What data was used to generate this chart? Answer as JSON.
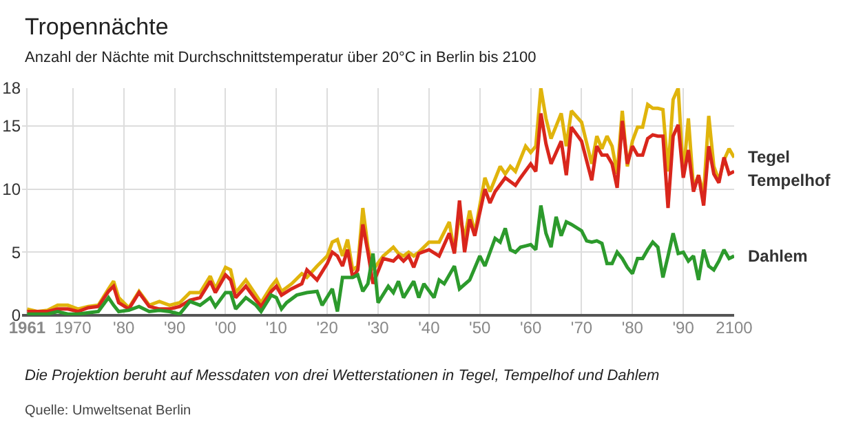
{
  "chart_data": {
    "type": "line",
    "title": "Tropennächte",
    "subtitle": "Anzahl der Nächte mit Durchschnittstemperatur über 20°C in Berlin bis 2100",
    "xlim": [
      1960,
      2100
    ],
    "ylim": [
      0,
      18
    ],
    "xticks": [
      {
        "value": 1961,
        "label": "1961"
      },
      1970,
      {
        "value": 1980,
        "label": "'80"
      },
      {
        "value": 1990,
        "label": "'90"
      },
      {
        "value": 2000,
        "label": "'00"
      },
      {
        "value": 2010,
        "label": "'10"
      },
      {
        "value": 2020,
        "label": "'20"
      },
      {
        "value": 2030,
        "label": "'30"
      },
      {
        "value": 2040,
        "label": "'40"
      },
      {
        "value": 2050,
        "label": "'50"
      },
      {
        "value": 2060,
        "label": "'60"
      },
      {
        "value": 2070,
        "label": "'70"
      },
      {
        "value": 2080,
        "label": "'80"
      },
      {
        "value": 2090,
        "label": "'90"
      },
      2100
    ],
    "yticks": [
      0,
      5,
      10,
      15,
      18
    ],
    "grid": true,
    "legend": false,
    "marker": "none",
    "line_style": "solid",
    "series": [
      {
        "name": "Tegel",
        "color": "#e0b40c",
        "x": [
          1961,
          1963,
          1965,
          1967,
          1969,
          1971,
          1973,
          1975,
          1977,
          1978,
          1979,
          1981,
          1983,
          1985,
          1987,
          1989,
          1991,
          1993,
          1995,
          1997,
          1998,
          2000,
          2001,
          2002,
          2004,
          2006,
          2007,
          2009,
          2010,
          2011,
          2013,
          2015,
          2016,
          2018,
          2020,
          2021,
          2022,
          2023,
          2024,
          2025,
          2026,
          2027,
          2028,
          2029,
          2031,
          2033,
          2034,
          2035,
          2036,
          2037,
          2038,
          2040,
          2042,
          2044,
          2045,
          2046,
          2047,
          2048,
          2049,
          2051,
          2052,
          2054,
          2055,
          2056,
          2057,
          2059,
          2060,
          2061,
          2062,
          2063,
          2064,
          2066,
          2067,
          2068,
          2070,
          2072,
          2073,
          2074,
          2075,
          2076,
          2077,
          2078,
          2079,
          2080,
          2081,
          2082,
          2083,
          2084,
          2085,
          2086,
          2087,
          2088,
          2089,
          2090,
          2091,
          2092,
          2093,
          2094,
          2095,
          2096,
          2097,
          2098,
          2099,
          2100
        ],
        "values": [
          0.5,
          0.3,
          0.4,
          0.8,
          0.8,
          0.5,
          0.7,
          0.8,
          2.1,
          2.7,
          1.4,
          0.6,
          1.9,
          0.8,
          1.1,
          0.8,
          1.0,
          1.8,
          1.8,
          3.1,
          2.1,
          3.8,
          3.6,
          1.8,
          2.8,
          1.6,
          1.0,
          2.3,
          2.8,
          1.9,
          2.5,
          3.3,
          3.0,
          3.9,
          4.7,
          5.8,
          6.0,
          4.7,
          6.0,
          3.6,
          3.9,
          8.5,
          5.4,
          3.6,
          4.7,
          5.4,
          4.9,
          4.7,
          5.0,
          4.7,
          5.0,
          5.8,
          5.8,
          7.4,
          5.0,
          8.0,
          6.1,
          8.3,
          6.5,
          10.9,
          9.8,
          11.8,
          11.2,
          11.8,
          11.4,
          13.4,
          12.9,
          13.4,
          18.0,
          15.6,
          14.0,
          16.0,
          13.4,
          16.2,
          15.3,
          12.0,
          14.2,
          13.2,
          14.2,
          13.4,
          11.2,
          16.2,
          11.8,
          13.8,
          14.9,
          14.9,
          16.7,
          16.4,
          16.4,
          16.3,
          11.4,
          17.1,
          18.0,
          11.1,
          15.6,
          10.1,
          11.1,
          9.6,
          15.8,
          11.8,
          10.7,
          12.3,
          13.2,
          12.5
        ]
      },
      {
        "name": "Tempelhof",
        "color": "#d9261c",
        "x": [
          1961,
          1963,
          1965,
          1967,
          1969,
          1971,
          1973,
          1975,
          1977,
          1978,
          1979,
          1981,
          1983,
          1985,
          1987,
          1989,
          1991,
          1993,
          1995,
          1997,
          1998,
          2000,
          2001,
          2002,
          2004,
          2006,
          2007,
          2009,
          2010,
          2011,
          2013,
          2015,
          2016,
          2018,
          2020,
          2021,
          2022,
          2023,
          2024,
          2025,
          2026,
          2027,
          2028,
          2029,
          2031,
          2033,
          2034,
          2035,
          2036,
          2037,
          2038,
          2040,
          2042,
          2044,
          2045,
          2046,
          2047,
          2048,
          2049,
          2051,
          2052,
          2053,
          2055,
          2057,
          2058,
          2060,
          2061,
          2062,
          2063,
          2064,
          2066,
          2067,
          2068,
          2070,
          2072,
          2073,
          2074,
          2075,
          2076,
          2077,
          2078,
          2079,
          2080,
          2081,
          2082,
          2083,
          2084,
          2085,
          2086,
          2087,
          2088,
          2089,
          2090,
          2091,
          2092,
          2093,
          2094,
          2095,
          2096,
          2097,
          2098,
          2099,
          2100
        ],
        "values": [
          0.3,
          0.3,
          0.3,
          0.5,
          0.5,
          0.3,
          0.6,
          0.7,
          1.9,
          2.3,
          1.0,
          0.5,
          1.8,
          0.7,
          0.5,
          0.5,
          0.7,
          1.2,
          1.4,
          2.7,
          1.8,
          3.2,
          2.8,
          1.4,
          2.3,
          1.2,
          0.7,
          1.9,
          2.3,
          1.6,
          2.1,
          2.5,
          3.6,
          2.8,
          4.1,
          5.0,
          4.7,
          3.9,
          5.2,
          3.0,
          3.6,
          7.2,
          5.0,
          2.5,
          4.5,
          4.3,
          4.7,
          4.3,
          4.7,
          3.8,
          4.9,
          5.2,
          4.7,
          6.5,
          4.9,
          9.1,
          5.0,
          7.6,
          6.3,
          10.0,
          8.9,
          9.8,
          10.9,
          10.3,
          10.9,
          12.0,
          11.4,
          16.0,
          13.6,
          12.0,
          13.8,
          11.1,
          14.9,
          13.8,
          10.7,
          13.4,
          12.7,
          12.7,
          12.0,
          10.1,
          15.4,
          12.0,
          13.4,
          12.7,
          12.7,
          14.0,
          14.3,
          14.2,
          14.2,
          8.5,
          14.2,
          15.1,
          10.9,
          13.1,
          9.8,
          11.1,
          8.7,
          13.4,
          11.2,
          10.5,
          12.5,
          11.2,
          11.4
        ]
      },
      {
        "name": "Dahlem",
        "color": "#2c9a2c",
        "x": [
          1961,
          1965,
          1967,
          1969,
          1971,
          1973,
          1975,
          1977,
          1978,
          1979,
          1981,
          1983,
          1985,
          1987,
          1989,
          1991,
          1993,
          1995,
          1997,
          1998,
          2000,
          2001,
          2002,
          2004,
          2006,
          2007,
          2009,
          2010,
          2011,
          2012,
          2014,
          2016,
          2018,
          2019,
          2021,
          2022,
          2023,
          2025,
          2026,
          2027,
          2028,
          2029,
          2030,
          2032,
          2033,
          2034,
          2035,
          2037,
          2038,
          2039,
          2041,
          2042,
          2043,
          2045,
          2046,
          2048,
          2050,
          2051,
          2053,
          2054,
          2055,
          2056,
          2057,
          2058,
          2060,
          2061,
          2062,
          2063,
          2064,
          2065,
          2066,
          2067,
          2068,
          2070,
          2071,
          2072,
          2073,
          2074,
          2075,
          2076,
          2077,
          2078,
          2079,
          2080,
          2081,
          2082,
          2083,
          2084,
          2085,
          2086,
          2087,
          2088,
          2089,
          2090,
          2091,
          2092,
          2093,
          2094,
          2095,
          2096,
          2097,
          2098,
          2099,
          2100
        ],
        "values": [
          0.1,
          0.1,
          0.3,
          0.1,
          0.1,
          0.2,
          0.3,
          1.4,
          0.8,
          0.3,
          0.4,
          0.7,
          0.3,
          0.4,
          0.3,
          0.1,
          1.1,
          0.8,
          1.4,
          0.7,
          1.8,
          1.8,
          0.5,
          1.4,
          0.8,
          0.3,
          1.6,
          1.4,
          0.5,
          1.0,
          1.6,
          1.8,
          1.9,
          0.8,
          2.1,
          0.3,
          3.0,
          3.0,
          3.2,
          1.9,
          2.5,
          4.9,
          1.0,
          2.3,
          1.8,
          2.7,
          1.4,
          2.7,
          1.4,
          2.5,
          1.4,
          2.8,
          2.5,
          3.9,
          2.1,
          2.8,
          4.7,
          3.9,
          6.1,
          5.8,
          6.9,
          5.2,
          5.0,
          5.4,
          5.6,
          5.2,
          8.7,
          6.5,
          5.4,
          7.8,
          6.3,
          7.4,
          7.2,
          6.7,
          5.9,
          5.8,
          5.9,
          5.7,
          4.1,
          4.1,
          5.0,
          4.5,
          3.8,
          3.3,
          4.5,
          4.5,
          5.2,
          5.8,
          5.4,
          3.0,
          4.7,
          6.5,
          4.9,
          5.0,
          4.3,
          4.7,
          2.8,
          5.2,
          3.9,
          3.6,
          4.3,
          5.2,
          4.5,
          4.7
        ]
      }
    ],
    "annotations": [
      "Die Projektion beruht auf Messdaten von drei Wetterstationen in Tegel, Tempelhof und Dahlem",
      "Quelle: Umweltsenat Berlin"
    ]
  }
}
